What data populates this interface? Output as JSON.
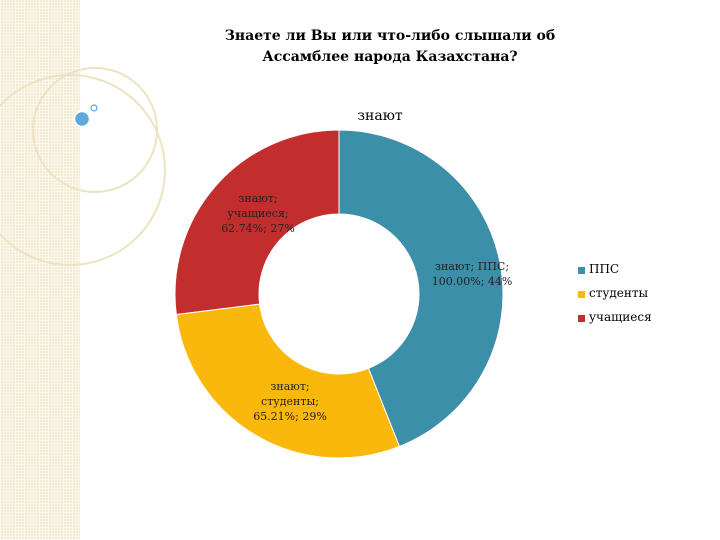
{
  "chart_data": {
    "type": "pie",
    "donut": true,
    "title": "Знаете ли Вы или что-либо слышали об Ассамблее народа Казахстана?",
    "subtitle": "знают",
    "series": [
      {
        "name": "знают",
        "slices": [
          {
            "category": "ППС",
            "percent_of_group": "100.00%",
            "value": 44,
            "share_label": "44%",
            "label": "знают; ППС; 100.00%; 44%",
            "color": "#3c8fa8"
          },
          {
            "category": "студенты",
            "percent_of_group": "65.21%",
            "value": 29,
            "share_label": "29%",
            "label": "знают; студенты; 65.21%; 29%",
            "color": "#fbb80c"
          },
          {
            "category": "учащиеся",
            "percent_of_group": "62.74%",
            "value": 27,
            "share_label": "27%",
            "label": "знают; учащиеся; 62.74%; 27%",
            "color": "#c22e2e"
          }
        ]
      }
    ],
    "legend": {
      "position": "right",
      "entries": [
        "ППС",
        "студенты",
        "учащиеся"
      ]
    }
  }
}
